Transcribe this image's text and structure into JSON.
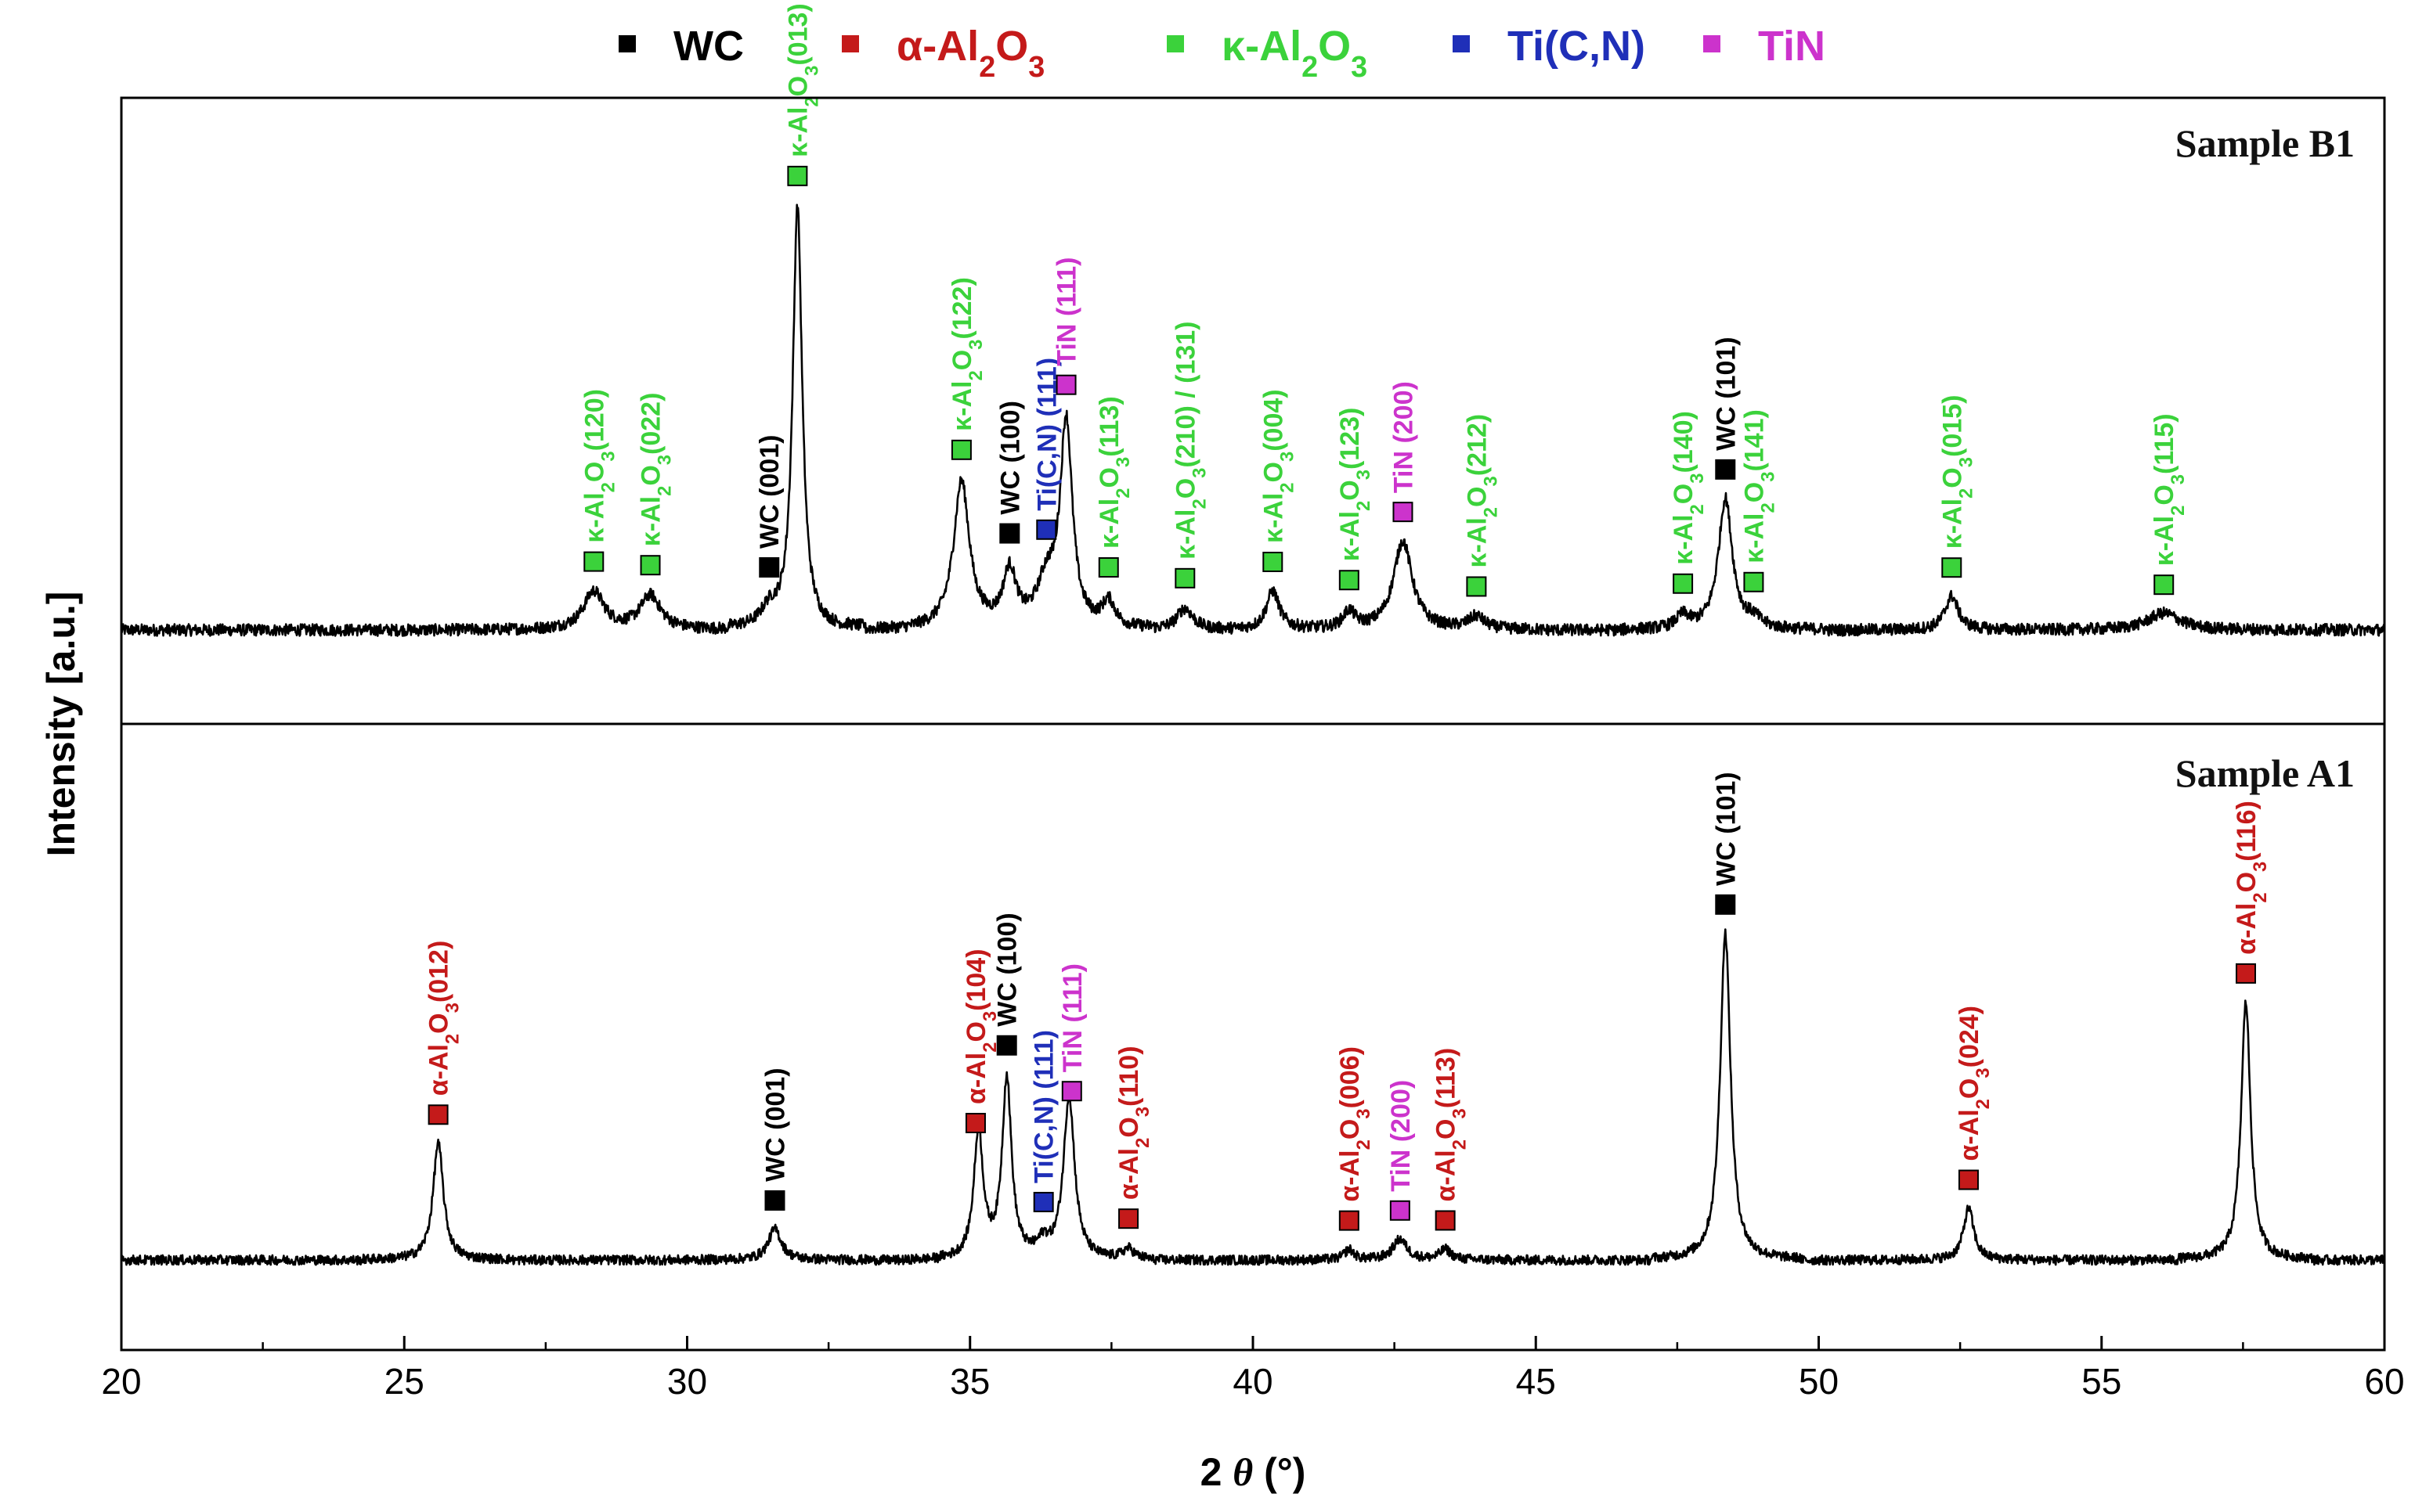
{
  "chart_data": {
    "type": "line",
    "xlabel": "2 θ (°)",
    "ylabel": "Intensity [a.u.]",
    "xlim": [
      20,
      60
    ],
    "x_ticks": [
      20,
      25,
      30,
      35,
      40,
      45,
      50,
      55,
      60
    ],
    "x_tick_labels": [
      "20",
      "25",
      "30",
      "35",
      "40",
      "45",
      "50",
      "55",
      "60"
    ],
    "legend_position": "top",
    "legend": [
      {
        "key": "WC",
        "label": "WC",
        "color": "#000000"
      },
      {
        "key": "alpha",
        "label": "α-Al2O3",
        "color": "#c41a1a"
      },
      {
        "key": "kappa",
        "label": "κ-Al2O3",
        "color": "#3bd23b"
      },
      {
        "key": "ticn",
        "label": "Ti(C,N)",
        "color": "#1f2fb8"
      },
      {
        "key": "tin",
        "label": "TiN",
        "color": "#cc33cc"
      }
    ],
    "panels": [
      {
        "name": "Sample B1",
        "title": "Sample B1",
        "peaks": [
          {
            "x": 28.35,
            "h": 0.09,
            "w": 0.22
          },
          {
            "x": 29.35,
            "h": 0.08,
            "w": 0.22
          },
          {
            "x": 31.45,
            "h": 0.04,
            "w": 0.18
          },
          {
            "x": 31.95,
            "h": 1.0,
            "w": 0.1
          },
          {
            "x": 34.85,
            "h": 0.35,
            "w": 0.17
          },
          {
            "x": 35.7,
            "h": 0.13,
            "w": 0.14
          },
          {
            "x": 36.35,
            "h": 0.1,
            "w": 0.2
          },
          {
            "x": 36.7,
            "h": 0.48,
            "w": 0.13
          },
          {
            "x": 37.45,
            "h": 0.06,
            "w": 0.14
          },
          {
            "x": 38.8,
            "h": 0.05,
            "w": 0.17
          },
          {
            "x": 40.35,
            "h": 0.09,
            "w": 0.14
          },
          {
            "x": 41.7,
            "h": 0.04,
            "w": 0.13
          },
          {
            "x": 42.65,
            "h": 0.21,
            "w": 0.2
          },
          {
            "x": 43.95,
            "h": 0.03,
            "w": 0.17
          },
          {
            "x": 47.6,
            "h": 0.03,
            "w": 0.14
          },
          {
            "x": 48.35,
            "h": 0.31,
            "w": 0.15
          },
          {
            "x": 48.85,
            "h": 0.02,
            "w": 0.14
          },
          {
            "x": 52.35,
            "h": 0.08,
            "w": 0.14
          },
          {
            "x": 56.1,
            "h": 0.04,
            "w": 0.34
          }
        ],
        "annotations": [
          {
            "x": 28.35,
            "phase": "kappa",
            "text": "κ-Al2O3(120)",
            "vertical": true
          },
          {
            "x": 29.35,
            "phase": "kappa",
            "text": "κ-Al2O3(022)",
            "vertical": true
          },
          {
            "x": 31.45,
            "phase": "WC",
            "text": "WC (001)",
            "vertical": true
          },
          {
            "x": 31.95,
            "phase": "kappa",
            "text": "κ-Al2O3(013)",
            "vertical": true
          },
          {
            "x": 34.85,
            "phase": "kappa",
            "text": "κ-Al2O3(122)",
            "vertical": true
          },
          {
            "x": 35.7,
            "phase": "WC",
            "text": "WC (100)",
            "vertical": true
          },
          {
            "x": 36.35,
            "phase": "ticn",
            "text": "Ti(C,N) (111)",
            "vertical": true
          },
          {
            "x": 36.7,
            "phase": "tin",
            "text": "TiN (111)",
            "vertical": true
          },
          {
            "x": 37.45,
            "phase": "kappa",
            "text": "κ-Al2O3(113)",
            "vertical": true
          },
          {
            "x": 38.8,
            "phase": "kappa",
            "text": "κ-Al2O3(210) / (131)",
            "vertical": true
          },
          {
            "x": 40.35,
            "phase": "kappa",
            "text": "κ-Al2O3(004)",
            "vertical": true
          },
          {
            "x": 41.7,
            "phase": "kappa",
            "text": "κ-Al2O3(123)",
            "vertical": true
          },
          {
            "x": 42.65,
            "phase": "tin",
            "text": "TiN (200)",
            "vertical": true
          },
          {
            "x": 43.95,
            "phase": "kappa",
            "text": "κ-Al2O3(212)",
            "vertical": true
          },
          {
            "x": 47.6,
            "phase": "kappa",
            "text": "κ-Al2O3(140)",
            "vertical": true
          },
          {
            "x": 48.35,
            "phase": "WC",
            "text": "WC (101)",
            "vertical": true
          },
          {
            "x": 48.85,
            "phase": "kappa",
            "text": "κ-Al2O3(141)",
            "vertical": true
          },
          {
            "x": 52.35,
            "phase": "kappa",
            "text": "κ-Al2O3(015)",
            "vertical": true
          },
          {
            "x": 56.1,
            "phase": "kappa",
            "text": "κ-Al2O3(115)",
            "vertical": true
          }
        ]
      },
      {
        "name": "Sample A1",
        "title": "Sample A1",
        "peaks": [
          {
            "x": 25.6,
            "h": 0.34,
            "w": 0.11
          },
          {
            "x": 31.55,
            "h": 0.09,
            "w": 0.14
          },
          {
            "x": 35.15,
            "h": 0.37,
            "w": 0.1
          },
          {
            "x": 35.65,
            "h": 0.52,
            "w": 0.1
          },
          {
            "x": 36.3,
            "h": 0.04,
            "w": 0.12
          },
          {
            "x": 36.75,
            "h": 0.47,
            "w": 0.12
          },
          {
            "x": 37.8,
            "h": 0.03,
            "w": 0.12
          },
          {
            "x": 41.7,
            "h": 0.03,
            "w": 0.1
          },
          {
            "x": 42.6,
            "h": 0.06,
            "w": 0.15
          },
          {
            "x": 43.4,
            "h": 0.03,
            "w": 0.12
          },
          {
            "x": 48.35,
            "h": 0.95,
            "w": 0.11
          },
          {
            "x": 52.65,
            "h": 0.15,
            "w": 0.11
          },
          {
            "x": 57.55,
            "h": 0.75,
            "w": 0.1
          }
        ],
        "annotations": [
          {
            "x": 25.6,
            "phase": "alpha",
            "text": "α-Al2O3(012)",
            "vertical": true
          },
          {
            "x": 31.55,
            "phase": "WC",
            "text": "WC (001)",
            "vertical": true
          },
          {
            "x": 35.1,
            "phase": "alpha",
            "text": "α-Al2O3(104)",
            "vertical": true
          },
          {
            "x": 35.65,
            "phase": "WC",
            "text": "WC (100)",
            "vertical": true
          },
          {
            "x": 36.3,
            "phase": "ticn",
            "text": "Ti(C,N) (111)",
            "vertical": true
          },
          {
            "x": 36.8,
            "phase": "tin",
            "text": "TiN (111)",
            "vertical": true
          },
          {
            "x": 37.8,
            "phase": "alpha",
            "text": "α-Al2O3(110)",
            "vertical": true
          },
          {
            "x": 41.7,
            "phase": "alpha",
            "text": "α-Al2O3(006)",
            "vertical": true
          },
          {
            "x": 42.6,
            "phase": "tin",
            "text": "TiN (200)",
            "vertical": true
          },
          {
            "x": 43.4,
            "phase": "alpha",
            "text": "α-Al2O3(113)",
            "vertical": true
          },
          {
            "x": 48.35,
            "phase": "WC",
            "text": "WC (101)",
            "vertical": true
          },
          {
            "x": 52.65,
            "phase": "alpha",
            "text": "α-Al2O3(024)",
            "vertical": true
          },
          {
            "x": 57.55,
            "phase": "alpha",
            "text": "α-Al2O3(116)",
            "vertical": true
          }
        ]
      }
    ]
  }
}
